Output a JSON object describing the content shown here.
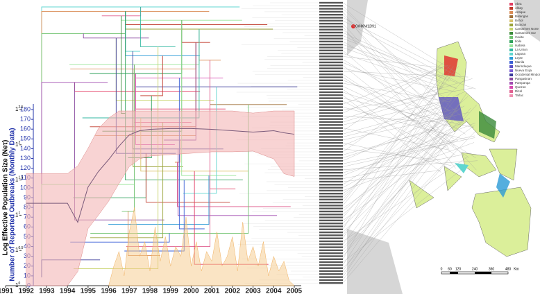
{
  "chart_data": {
    "type": "line",
    "ylabel": "Number of Reported Outbreaks (Monthly Data)",
    "y2label": "Log Effective Population Size (Neτ)",
    "xlim": [
      1991,
      2005
    ],
    "xticks": [
      1991,
      1992,
      1993,
      1994,
      1995,
      1996,
      1997,
      1998,
      1999,
      2000,
      2001,
      2002,
      2003,
      2004,
      2005
    ],
    "ylim": [
      0,
      180
    ],
    "yticks": [
      0,
      10,
      20,
      30,
      40,
      50,
      60,
      70,
      80,
      90,
      100,
      110,
      120,
      130,
      140,
      150,
      160,
      170,
      180
    ],
    "y2lim": [
      0,
      2.5
    ],
    "y2ticks": [
      {
        "value": 0,
        "label": "1"
      },
      {
        "value": 0.5,
        "label": "1"
      },
      {
        "value": 1,
        "label": "1"
      },
      {
        "value": 1.5,
        "label": "1"
      },
      {
        "value": 2,
        "label": "1"
      },
      {
        "value": 2.5,
        "label": "1"
      }
    ],
    "series": [
      {
        "color": "#f5c98a",
        "x": [
          1996,
          1996.25,
          1996.5,
          1996.75,
          1997,
          1997.25,
          1997.5,
          1997.75,
          1998,
          1998.25,
          1998.5,
          1998.75,
          1999,
          1999.25,
          1999.5,
          1999.75,
          2000,
          2000.25,
          2000.5,
          2000.75,
          2001,
          2001.25,
          2001.5,
          2001.75,
          2002,
          2002.25,
          2002.5,
          2002.75,
          2003,
          2003.25,
          2003.5,
          2003.75,
          2004,
          2004.25,
          2004.5,
          2004.75,
          2005
        ],
        "values": [
          0,
          20,
          35,
          10,
          55,
          80,
          30,
          45,
          15,
          60,
          25,
          50,
          20,
          40,
          30,
          70,
          20,
          45,
          15,
          35,
          25,
          55,
          20,
          30,
          50,
          15,
          65,
          25,
          40,
          20,
          45,
          10,
          30,
          15,
          25,
          5,
          0
        ]
      },
      {
        "axis": "y2",
        "color": "#7a5a7a",
        "x": [
          1992,
          1993,
          1994,
          1994.5,
          1995,
          1995.5,
          1996,
          1996.5,
          1997,
          1997.5,
          1998,
          1999,
          2000,
          2001,
          2002,
          2003,
          2004,
          2004.5,
          2005
        ],
        "values": [
          1.17,
          1.17,
          1.17,
          0.9,
          1.4,
          1.62,
          1.79,
          1.98,
          2.14,
          2.2,
          2.22,
          2.23,
          2.23,
          2.22,
          2.2,
          2.18,
          2.2,
          2.17,
          2.15
        ],
        "band": {
          "lower": [
            0,
            0,
            0,
            0.2,
            0.81,
            1.0,
            1.2,
            1.45,
            1.69,
            1.8,
            1.84,
            1.86,
            1.88,
            1.9,
            1.9,
            1.91,
            1.8,
            1.59,
            1.55
          ],
          "upper": [
            1.59,
            1.59,
            1.59,
            1.7,
            1.95,
            2.23,
            2.38,
            2.48,
            2.48,
            2.48,
            2.48,
            2.48,
            2.48,
            2.48,
            2.48,
            2.45,
            2.48,
            2.48,
            2.48
          ]
        }
      }
    ]
  },
  "map": {
    "callout": "O/HKN/12/91",
    "legend": [
      {
        "label": "Abra",
        "color": "#e23c63"
      },
      {
        "label": "Albay",
        "color": "#c0392b"
      },
      {
        "label": "Antique",
        "color": "#d98c55"
      },
      {
        "label": "Batangas",
        "color": "#a0703a"
      },
      {
        "label": "Bohol",
        "color": "#d9c36a"
      },
      {
        "label": "Bulacan",
        "color": "#9aa33a"
      },
      {
        "label": "Camarines Norte",
        "color": "#c7d36a"
      },
      {
        "label": "Camarines Sur",
        "color": "#3a8a3a"
      },
      {
        "label": "Cavite",
        "color": "#6fc26f"
      },
      {
        "label": "Iloilo",
        "color": "#2ea05a"
      },
      {
        "label": "Isabela",
        "color": "#9be59b"
      },
      {
        "label": "La Union",
        "color": "#2fb7a0"
      },
      {
        "label": "Laguna",
        "color": "#5fd6d0"
      },
      {
        "label": "Leyte",
        "color": "#2a9ad6"
      },
      {
        "label": "Manila",
        "color": "#3a5fd6"
      },
      {
        "label": "Marinduque",
        "color": "#5a4fc6"
      },
      {
        "label": "Nueva Ecija",
        "color": "#7a5ad6"
      },
      {
        "label": "Occidental Mindoro",
        "color": "#3a3a9a"
      },
      {
        "label": "Pangasinan",
        "color": "#8a4aa0"
      },
      {
        "label": "Pampanga",
        "color": "#a04ab0"
      },
      {
        "label": "Quezon",
        "color": "#d64ab0"
      },
      {
        "label": "Rizal",
        "color": "#e06090"
      },
      {
        "label": "Tarlac",
        "color": "#f08fb0"
      }
    ],
    "scale": [
      "0",
      "60",
      "120",
      "240",
      "360",
      "480",
      "Km"
    ]
  }
}
